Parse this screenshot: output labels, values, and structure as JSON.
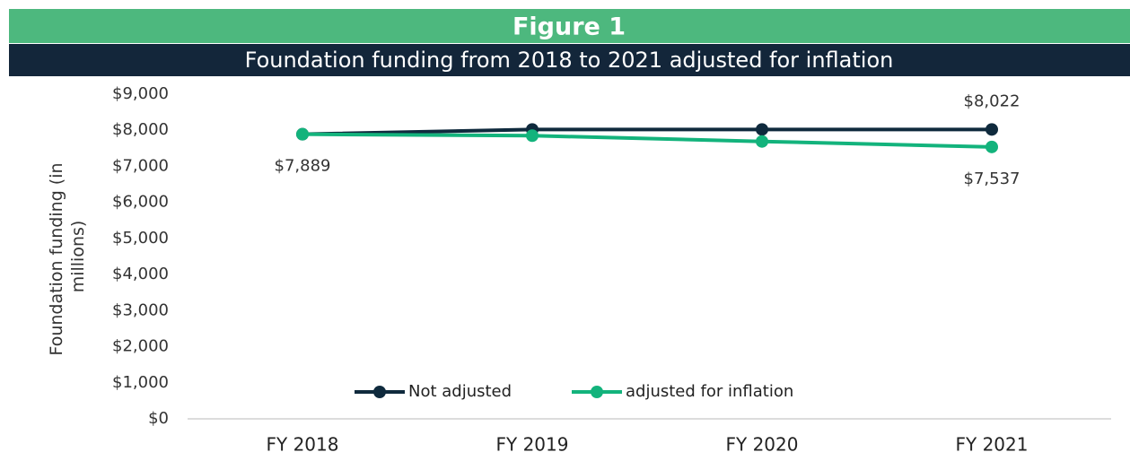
{
  "chart_data": {
    "type": "line",
    "figure_label": "Figure 1",
    "title": "Foundation funding from 2018 to 2021 adjusted for inflation",
    "y_label": "Foundation funding (in millions)",
    "categories": [
      "FY 2018",
      "FY 2019",
      "FY 2020",
      "FY 2021"
    ],
    "series": [
      {
        "name": "Not adjusted",
        "color": "#0f2a3d",
        "values": [
          7889,
          8022,
          8022,
          8022
        ],
        "value_labels": [
          "$7,889",
          null,
          null,
          "$8,022"
        ]
      },
      {
        "name": "adjusted for inflation",
        "color": "#13b37c",
        "values": [
          7889,
          7850,
          7690,
          7537
        ],
        "value_labels": [
          null,
          null,
          null,
          "$7,537"
        ]
      }
    ],
    "ylim": [
      0,
      9000
    ],
    "yticks": [
      {
        "value": 0,
        "label": "$0"
      },
      {
        "value": 1000,
        "label": "$1,000"
      },
      {
        "value": 2000,
        "label": "$2,000"
      },
      {
        "value": 3000,
        "label": "$3,000"
      },
      {
        "value": 4000,
        "label": "$4,000"
      },
      {
        "value": 5000,
        "label": "$5,000"
      },
      {
        "value": 6000,
        "label": "$6,000"
      },
      {
        "value": 7000,
        "label": "$7,000"
      },
      {
        "value": 8000,
        "label": "$8,000"
      },
      {
        "value": 9000,
        "label": "$9,000"
      }
    ],
    "grid": false,
    "legend": "bottom"
  }
}
